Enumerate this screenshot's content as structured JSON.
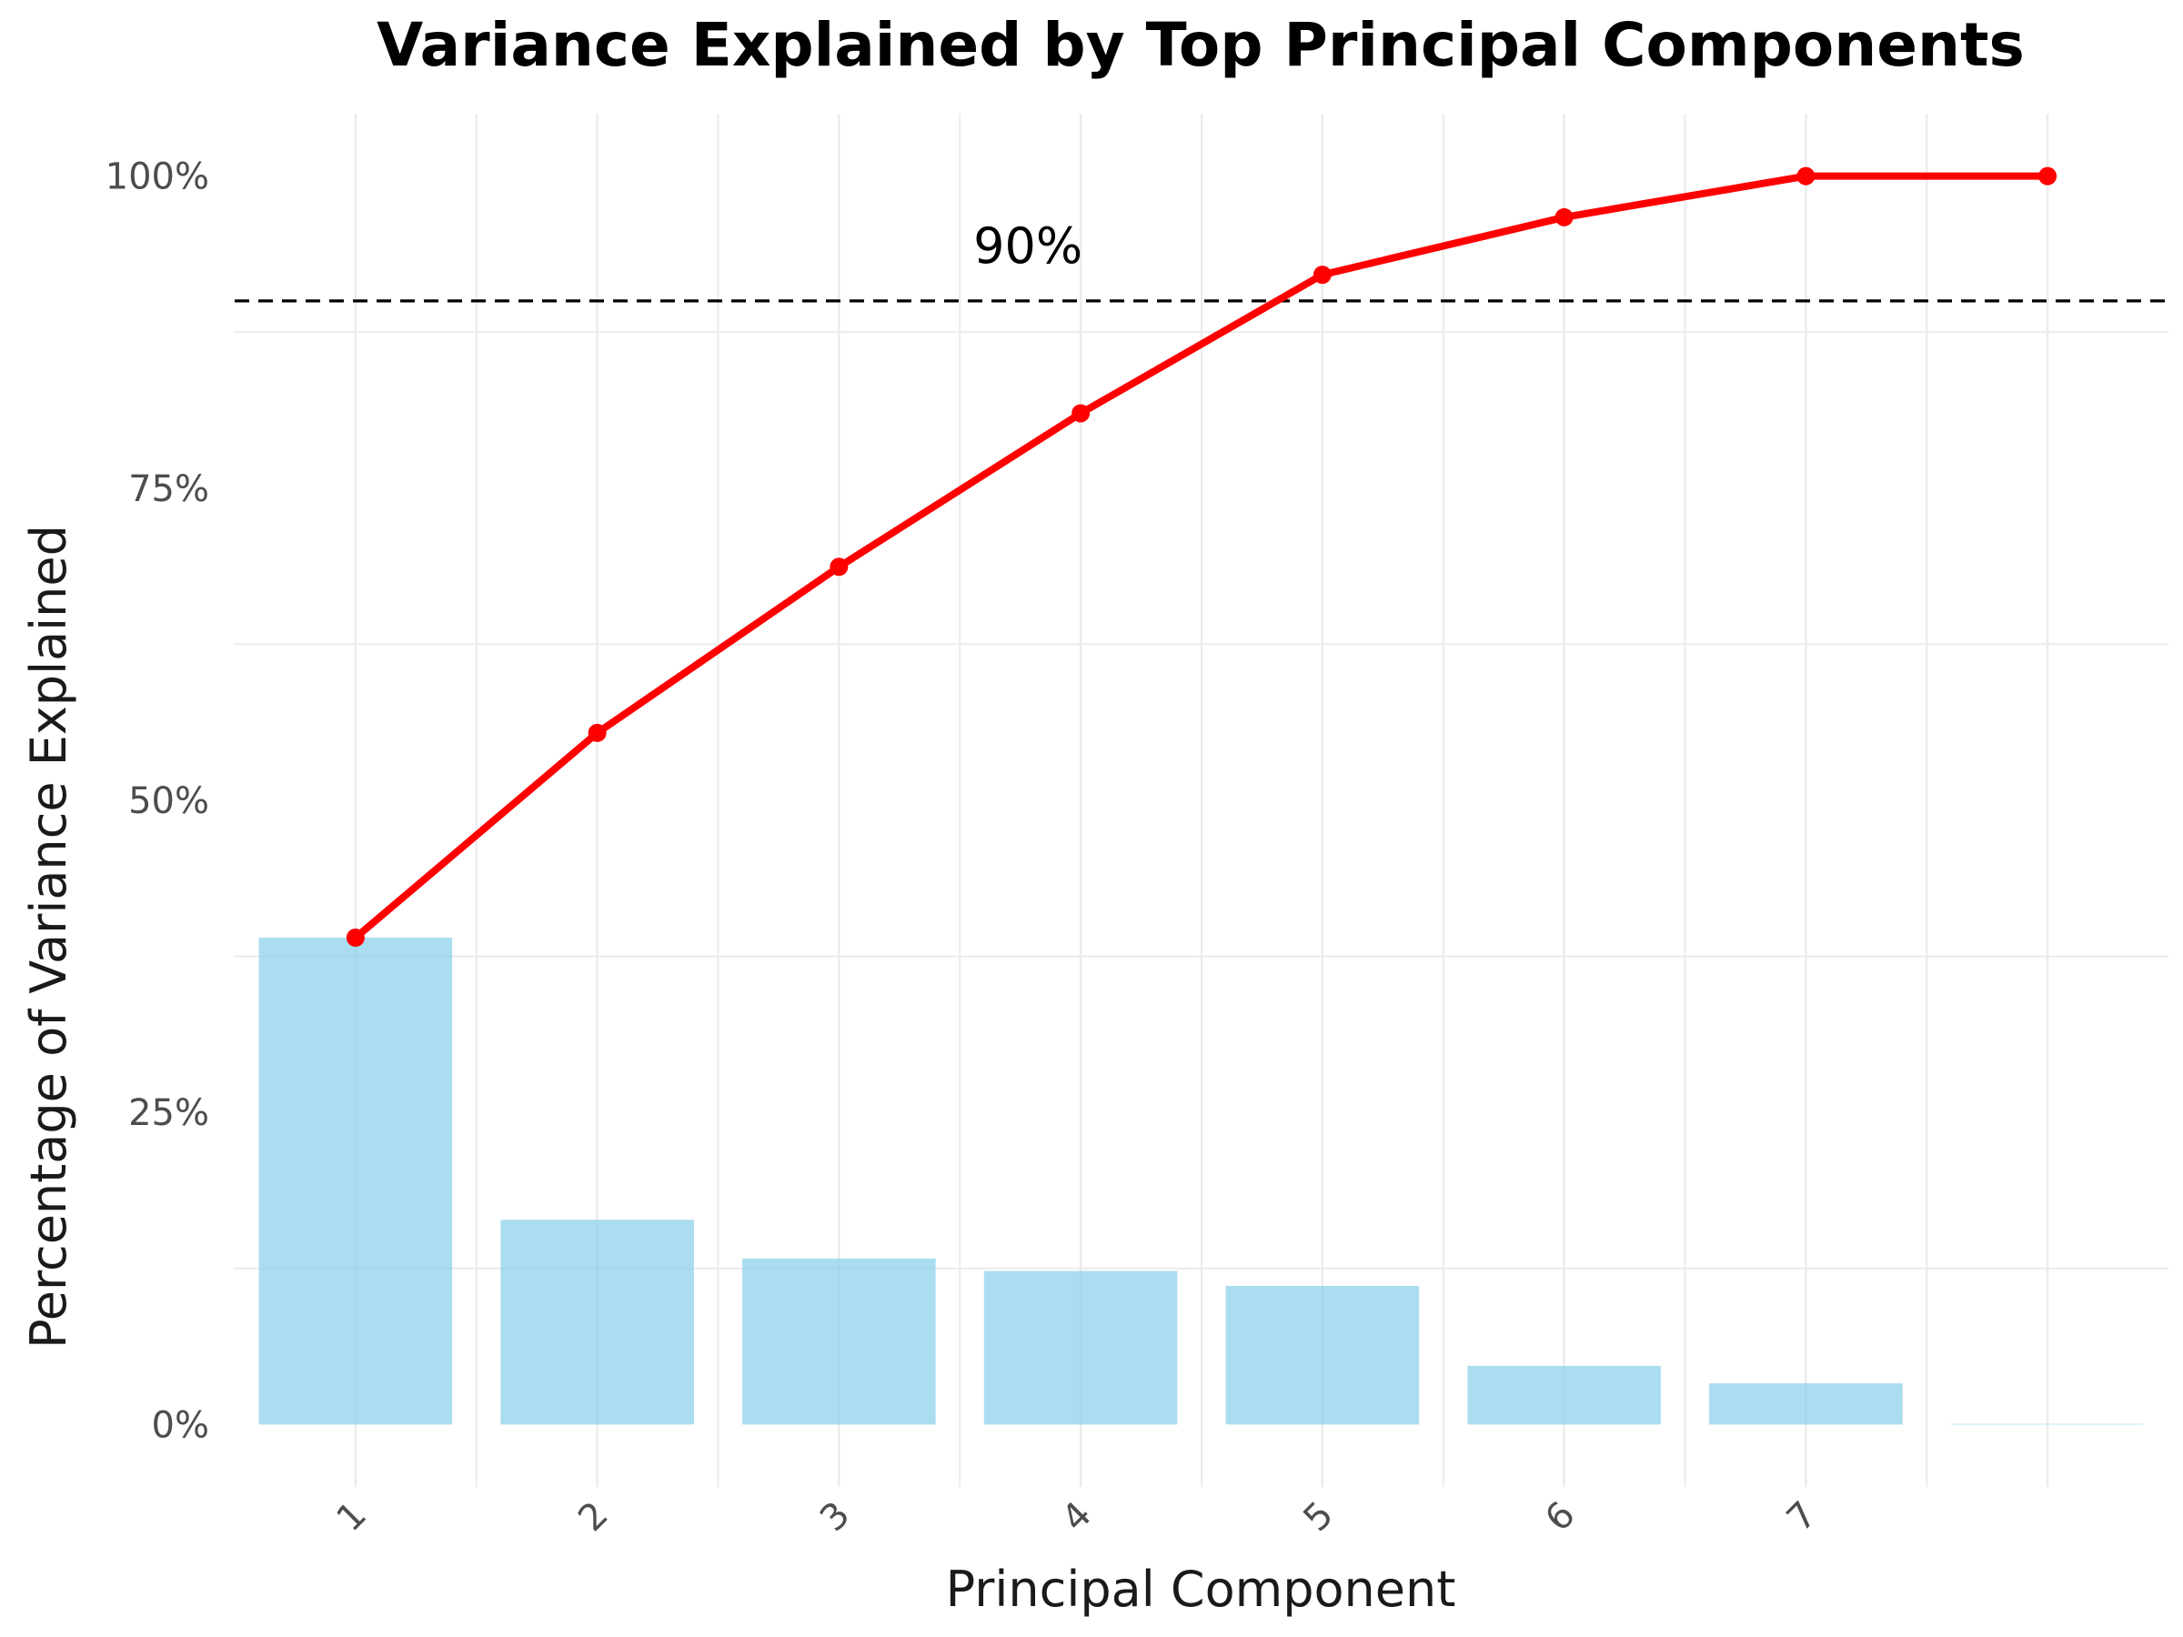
{
  "chart_data": {
    "type": "bar",
    "title": "Variance Explained by Top Principal Components",
    "xlabel": "Principal Component",
    "ylabel": "Percentage of Variance Explained",
    "categories": [
      "1",
      "2",
      "3",
      "4",
      "5",
      "6",
      "7",
      ""
    ],
    "y_ticks": [
      "0%",
      "25%",
      "50%",
      "75%",
      "100%"
    ],
    "ylim": [
      -5,
      105
    ],
    "grid": true,
    "legend": "none",
    "series": [
      {
        "type": "bar",
        "values": [
          39.0,
          16.4,
          13.3,
          12.3,
          11.1,
          4.7,
          3.3,
          0.05
        ],
        "color": "#87CEEB"
      },
      {
        "type": "line",
        "values": [
          39.0,
          55.4,
          68.7,
          81.0,
          92.1,
          96.7,
          100.0,
          100.0
        ],
        "color": "#FF0000"
      }
    ],
    "threshold": {
      "value": 90,
      "label": "90%",
      "style": "dashed",
      "color": "#000000"
    }
  }
}
